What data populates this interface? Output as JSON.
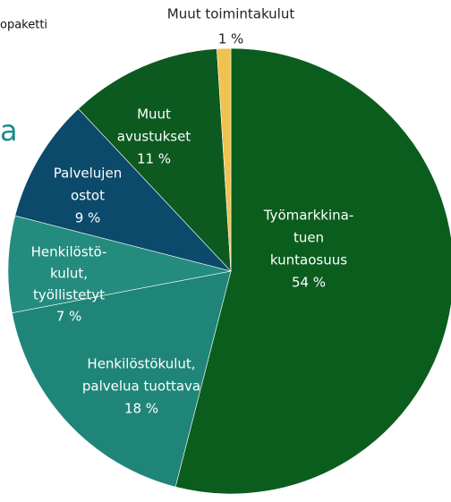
{
  "fragments": {
    "top_left": "opaketti",
    "left_heading": "a"
  },
  "chart_data": {
    "type": "pie",
    "categories": [
      [
        "Työmarkkina-",
        "tuen",
        "kuntaosuus"
      ],
      [
        "Henkilöstökulut,",
        "palvelua tuottava"
      ],
      [
        "Henkilöstö-",
        "kulut,",
        "työllistetyt"
      ],
      [
        "Palvelujen",
        "ostot"
      ],
      [
        "Muut",
        "avustukset"
      ],
      [
        "Muut toimintakulut"
      ]
    ],
    "values": [
      54,
      18,
      7,
      9,
      11,
      1
    ],
    "value_labels": [
      "54 %",
      "18 %",
      "7 %",
      "9 %",
      "11 %",
      "1 %"
    ],
    "colors": [
      "#0b5d1e",
      "#1f8579",
      "#248c7f",
      "#0c4a6b",
      "#0d5a20",
      "#f0c24e"
    ]
  }
}
